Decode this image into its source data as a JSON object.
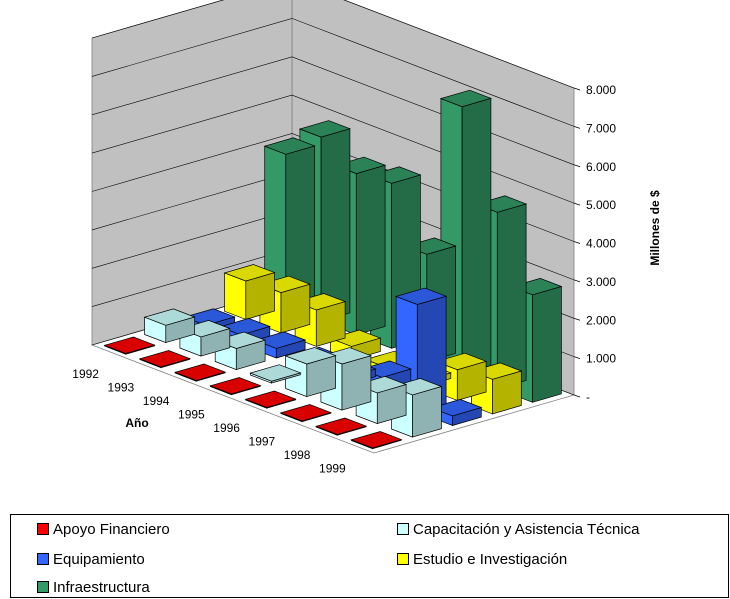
{
  "chart_data": {
    "type": "bar",
    "variant": "3d-column",
    "title": "",
    "zlabel": "Millones de $",
    "ylabel": "Año",
    "xlabel": "",
    "zlim": [
      0,
      8000
    ],
    "z_ticks": [
      "-",
      "1.000",
      "2.000",
      "3.000",
      "4.000",
      "5.000",
      "6.000",
      "7.000",
      "8.000"
    ],
    "categories": [
      "1992",
      "1993",
      "1994",
      "1995",
      "1996",
      "1997",
      "1998",
      "1999"
    ],
    "grid": true,
    "legend": "bottom",
    "series": [
      {
        "name": "Apoyo Financiero",
        "color": "#ff0000",
        "values": [
          20,
          20,
          20,
          20,
          20,
          20,
          20,
          20
        ]
      },
      {
        "name": "Capacitación y Asistencia Técnica",
        "color": "#ccffff",
        "values": [
          450,
          500,
          550,
          50,
          850,
          1200,
          800,
          1100
        ]
      },
      {
        "name": "Equipamiento",
        "color": "#3366ff",
        "values": [
          150,
          250,
          250,
          200,
          200,
          550,
          2800,
          250
        ]
      },
      {
        "name": "Estudio e Investigación",
        "color": "#ffff00",
        "values": [
          1000,
          1050,
          950,
          350,
          150,
          150,
          800,
          900
        ]
      },
      {
        "name": "Infraestructura",
        "color": "#339966",
        "values": [
          4000,
          4800,
          4200,
          4300,
          2800,
          7000,
          4600,
          2800
        ]
      }
    ]
  },
  "legend_order": [
    0,
    1,
    2,
    3,
    4
  ]
}
